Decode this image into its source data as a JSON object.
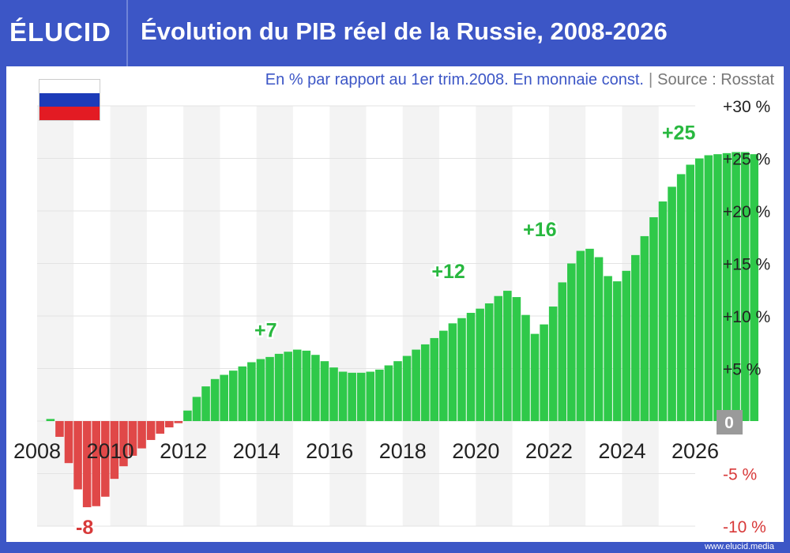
{
  "brand": {
    "logo": "ÉLUCID",
    "footer_url": "www.elucid.media"
  },
  "title": "Évolution du PIB réel de la Russie, 2008-2026",
  "subtitle": {
    "main": "En % par rapport au 1er trim.2008. En monnaie const.",
    "separator": "|",
    "source": "Source : Rosstat"
  },
  "flag": {
    "colors": [
      "#ffffff",
      "#1c3bb8",
      "#e31b23"
    ]
  },
  "colors": {
    "positive": "#2fc94a",
    "negative": "#e04848",
    "positive_text": "#28b83f",
    "negative_text": "#d83a3a",
    "header": "#3c56c6",
    "zero_badge": "#9a9a9a"
  },
  "chart_data": {
    "type": "bar",
    "xlabel": "",
    "ylabel": "",
    "ylim": [
      -10,
      30
    ],
    "x_start": 2008.0,
    "x_end": 2026.0,
    "x_ticks": [
      2008,
      2010,
      2012,
      2014,
      2016,
      2018,
      2020,
      2022,
      2024,
      2026
    ],
    "x_tick_labels": [
      "2008",
      "2010",
      "2012",
      "2014",
      "2016",
      "2018",
      "2020",
      "2022",
      "2024",
      "2026"
    ],
    "y_ticks": [
      -10,
      -5,
      0,
      5,
      10,
      15,
      20,
      25,
      30
    ],
    "y_tick_labels": [
      "-10 %",
      "-5 %",
      "0",
      "+5 %",
      "+10 %",
      "+15 %",
      "+20 %",
      "+25 %",
      "+30 %"
    ],
    "grid": true,
    "quarter_width": 0.25,
    "series": [
      {
        "values": [
          0,
          0.2,
          -1.5,
          -4,
          -6.5,
          -8.2,
          -8.1,
          -7.2,
          -5.5,
          -4.3,
          -3.3,
          -2.6,
          -1.8,
          -1.2,
          -0.6,
          -0.2,
          1.0,
          2.3,
          3.3,
          4.0,
          4.4,
          4.8,
          5.2,
          5.6,
          5.9,
          6.1,
          6.4,
          6.6,
          6.8,
          6.7,
          6.3,
          5.7,
          5.1,
          4.7,
          4.6,
          4.6,
          4.7,
          4.9,
          5.3,
          5.7,
          6.2,
          6.8,
          7.3,
          7.9,
          8.6,
          9.3,
          9.8,
          10.3,
          10.7,
          11.2,
          11.9,
          12.4,
          11.8,
          10.1,
          8.3,
          9.2,
          10.9,
          13.2,
          15.0,
          16.2,
          16.4,
          15.6,
          13.8,
          13.3,
          14.3,
          15.8,
          17.6,
          19.4,
          20.9,
          22.3,
          23.5,
          24.4,
          25.0,
          25.3,
          25.4,
          25.5,
          25.6,
          25.6,
          25.4
        ]
      }
    ],
    "annotations": [
      {
        "text": "-8",
        "x": 2009.3,
        "y": -8.2
      },
      {
        "text": "+7",
        "x": 2014.25,
        "y": 6.8
      },
      {
        "text": "+12",
        "x": 2019.25,
        "y": 12.4
      },
      {
        "text": "+16",
        "x": 2021.75,
        "y": 16.4
      },
      {
        "text": "+25",
        "x": 2025.55,
        "y": 25.6
      }
    ]
  }
}
